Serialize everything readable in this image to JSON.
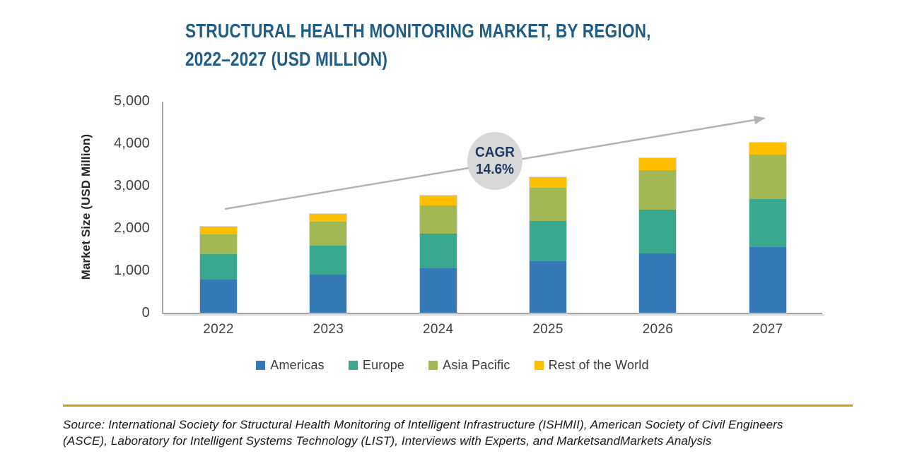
{
  "title": {
    "line1": "STRUCTURAL HEALTH MONITORING MARKET, BY REGION,",
    "line2": "2022–2027 (USD MILLION)"
  },
  "chart_data": {
    "type": "bar",
    "stacked": true,
    "title": "STRUCTURAL HEALTH MONITORING MARKET, BY REGION, 2022–2027 (USD MILLION)",
    "categories": [
      "2022",
      "2023",
      "2024",
      "2025",
      "2026",
      "2027"
    ],
    "series": [
      {
        "name": "Americas",
        "color": "#3679b7",
        "values": [
          780,
          895,
          1050,
          1220,
          1405,
          1555
        ]
      },
      {
        "name": "Europe",
        "color": "#3aa78f",
        "values": [
          610,
          690,
          820,
          940,
          1035,
          1130
        ]
      },
      {
        "name": "Asia Pacific",
        "color": "#a1b854",
        "values": [
          455,
          565,
          655,
          785,
          930,
          1055
        ]
      },
      {
        "name": "Rest of the World",
        "color": "#febf00",
        "values": [
          190,
          185,
          245,
          260,
          285,
          285
        ]
      }
    ],
    "totals": [
      2035,
      2335,
      2770,
      3205,
      3655,
      4025
    ],
    "xlabel": "",
    "ylabel": "Market Size (USD Million)",
    "ylim": [
      0,
      5000
    ],
    "yticks": [
      0,
      1000,
      2000,
      3000,
      4000,
      5000
    ],
    "ytick_labels": [
      "0",
      "1,000",
      "2,000",
      "3,000",
      "4,000",
      "5,000"
    ],
    "grid": false,
    "legend_position": "bottom",
    "annotation": {
      "line1": "CAGR",
      "line2": "14.6%"
    }
  },
  "colors": {
    "title_text": "#1f5d86",
    "axis_line": "#a6a6a6",
    "tick_text": "#404040",
    "cagr_circle": "#d8d8d8",
    "cagr_text": "#1f3a63",
    "trend_arrow": "#b3b3b3",
    "divider_gold": "#d39b1d"
  },
  "source": {
    "line1": "Source: International Society for Structural Health Monitoring of Intelligent Infrastructure (ISHMII), American Society of Civil Engineers",
    "line2": "(ASCE), Laboratory for Intelligent Systems Technology (LIST), Interviews with Experts, and MarketsandMarkets Analysis"
  }
}
